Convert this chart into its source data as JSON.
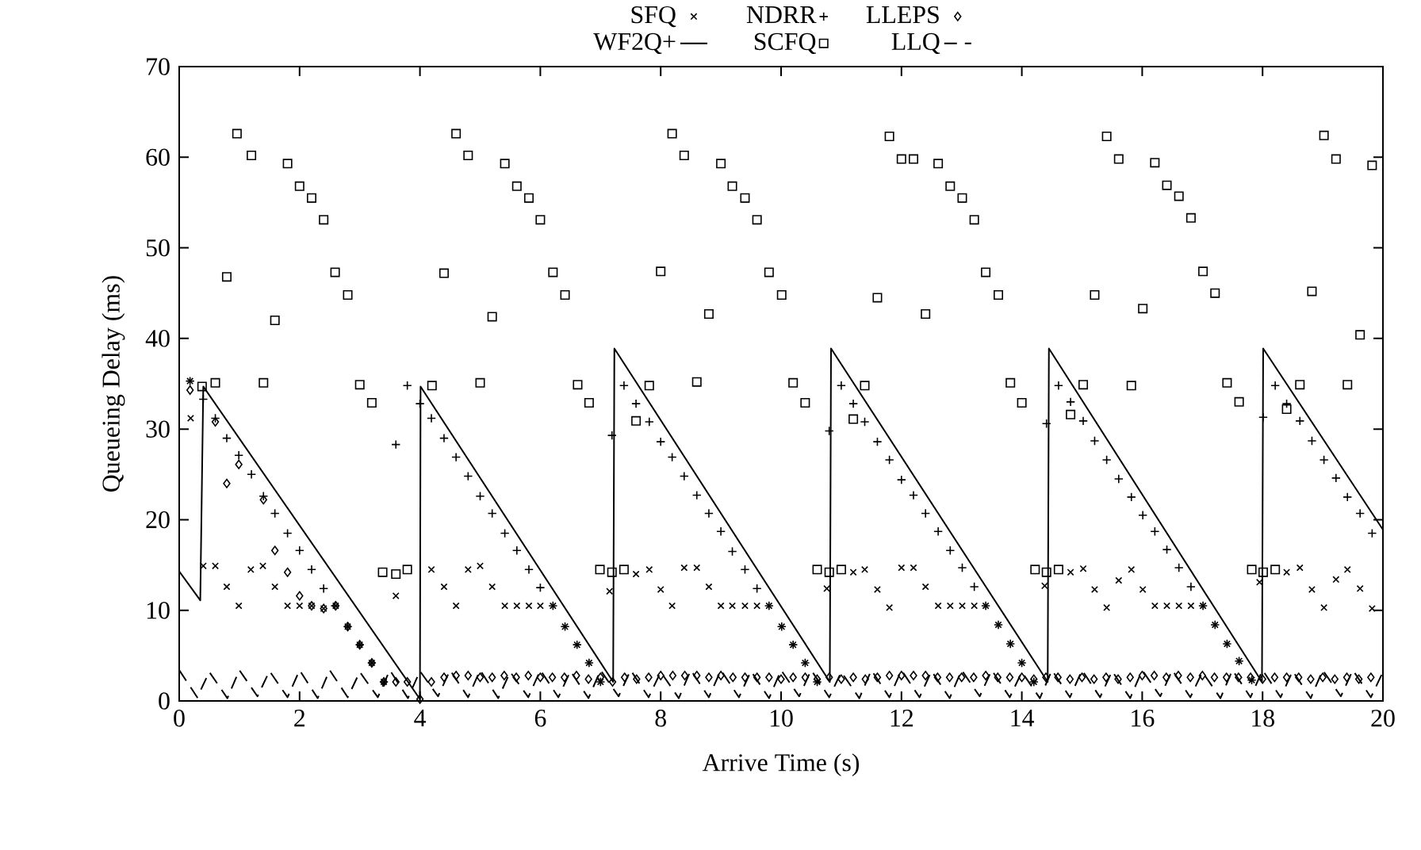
{
  "chart_data": {
    "type": "scatter",
    "xlabel": "Arrive Time (s)",
    "ylabel": "Queueing Delay (ms)",
    "xlim": [
      0,
      20
    ],
    "ylim": [
      0,
      70
    ],
    "xticks": [
      0,
      2,
      4,
      6,
      8,
      10,
      12,
      14,
      16,
      18,
      20
    ],
    "yticks": [
      0,
      10,
      20,
      30,
      40,
      50,
      60,
      70
    ],
    "grid": false,
    "legend": "top",
    "series": [
      {
        "name": "SFQ",
        "type": "scatter",
        "marker": "cross",
        "color": "#000000",
        "x": [
          0.18,
          0.19,
          0.4,
          0.6,
          0.79,
          0.99,
          1.19,
          1.39,
          1.59,
          1.8,
          2.0,
          2.2,
          2.4,
          2.6,
          2.8,
          3.0,
          3.2,
          3.4,
          3.6,
          4.19,
          4.4,
          4.6,
          4.8,
          5.0,
          5.2,
          5.41,
          5.61,
          5.81,
          6.0,
          6.21,
          6.41,
          6.61,
          6.81,
          7.0,
          7.15,
          7.59,
          7.81,
          8.0,
          8.19,
          8.39,
          8.6,
          8.8,
          9.0,
          9.19,
          9.4,
          9.6,
          9.8,
          10.01,
          10.2,
          10.4,
          10.6,
          10.76,
          11.2,
          11.39,
          11.6,
          11.8,
          12.0,
          12.2,
          12.4,
          12.61,
          12.81,
          13.01,
          13.21,
          13.4,
          13.61,
          13.81,
          14.0,
          14.2,
          14.38,
          14.81,
          15.02,
          15.21,
          15.41,
          15.61,
          15.82,
          16.01,
          16.21,
          16.41,
          16.61,
          16.81,
          17.01,
          17.21,
          17.41,
          17.61,
          17.82,
          17.95,
          18.4,
          18.62,
          18.82,
          19.02,
          19.22,
          19.41,
          19.62,
          19.82
        ],
        "values": [
          35.3,
          31.2,
          14.9,
          14.9,
          12.6,
          10.5,
          14.5,
          14.9,
          12.6,
          10.5,
          10.5,
          10.5,
          10.2,
          10.5,
          8.2,
          6.2,
          4.2,
          2.1,
          11.6,
          14.5,
          12.6,
          10.5,
          14.5,
          14.9,
          12.6,
          10.5,
          10.5,
          10.5,
          10.5,
          10.5,
          8.2,
          6.2,
          4.2,
          2.1,
          12.1,
          14.0,
          14.5,
          12.3,
          10.5,
          14.7,
          14.7,
          12.6,
          10.5,
          10.5,
          10.5,
          10.5,
          10.5,
          8.2,
          6.2,
          4.2,
          2.1,
          12.4,
          14.2,
          14.5,
          12.3,
          10.3,
          14.7,
          14.7,
          12.6,
          10.5,
          10.5,
          10.5,
          10.5,
          10.5,
          8.4,
          6.3,
          4.2,
          2.1,
          12.7,
          14.2,
          14.6,
          12.3,
          10.3,
          13.3,
          14.5,
          12.3,
          10.5,
          10.5,
          10.5,
          10.5,
          10.5,
          8.4,
          6.3,
          4.4,
          2.3,
          13.1,
          14.2,
          14.7,
          12.3,
          10.3,
          13.4,
          14.5,
          12.4,
          10.2
        ]
      },
      {
        "name": "NDRR",
        "type": "scatter",
        "marker": "plus",
        "color": "#000000",
        "x": [
          0.18,
          0.4,
          0.6,
          0.79,
          0.99,
          1.2,
          1.4,
          1.59,
          1.8,
          2.0,
          2.2,
          2.4,
          2.59,
          2.8,
          3.0,
          3.2,
          3.4,
          3.6,
          3.79,
          4.0,
          4.19,
          4.4,
          4.6,
          4.8,
          5.0,
          5.2,
          5.41,
          5.61,
          5.81,
          6.0,
          6.21,
          6.41,
          6.61,
          6.81,
          7.0,
          7.19,
          7.39,
          7.59,
          7.81,
          8.0,
          8.19,
          8.39,
          8.6,
          8.8,
          9.0,
          9.19,
          9.4,
          9.6,
          9.8,
          10.01,
          10.2,
          10.4,
          10.6,
          10.8,
          11.0,
          11.2,
          11.39,
          11.6,
          11.8,
          12.0,
          12.2,
          12.4,
          12.61,
          12.81,
          13.01,
          13.21,
          13.4,
          13.61,
          13.81,
          14.0,
          14.2,
          14.41,
          14.61,
          14.81,
          15.02,
          15.21,
          15.41,
          15.61,
          15.82,
          16.01,
          16.21,
          16.41,
          16.61,
          16.81,
          17.01,
          17.21,
          17.41,
          17.61,
          17.82,
          18.01,
          18.21,
          18.4,
          18.62,
          18.82,
          19.02,
          19.22,
          19.41,
          19.62,
          19.82
        ],
        "values": [
          35.3,
          33.3,
          31.2,
          29.0,
          27.1,
          25.0,
          22.6,
          20.7,
          18.5,
          16.6,
          14.5,
          12.4,
          10.5,
          8.2,
          6.2,
          4.2,
          2.1,
          28.3,
          34.8,
          32.8,
          31.2,
          29.0,
          26.9,
          24.8,
          22.6,
          20.7,
          18.5,
          16.6,
          14.5,
          12.5,
          10.5,
          8.2,
          6.2,
          4.2,
          2.1,
          29.3,
          34.8,
          32.8,
          30.8,
          28.6,
          26.9,
          24.8,
          22.7,
          20.7,
          18.7,
          16.5,
          14.5,
          12.4,
          10.5,
          8.2,
          6.2,
          4.2,
          2.1,
          29.8,
          34.8,
          32.8,
          30.8,
          28.6,
          26.6,
          24.4,
          22.7,
          20.7,
          18.7,
          16.6,
          14.7,
          12.6,
          10.5,
          8.4,
          6.3,
          4.2,
          2.1,
          30.6,
          34.8,
          33.0,
          30.9,
          28.7,
          26.6,
          24.5,
          22.5,
          20.5,
          18.7,
          16.7,
          14.7,
          12.6,
          10.5,
          8.4,
          6.3,
          4.4,
          2.3,
          31.3,
          34.8,
          32.8,
          30.9,
          28.7,
          26.6,
          24.6,
          22.5,
          20.7,
          18.5
        ]
      },
      {
        "name": "LLEPS",
        "type": "scatter",
        "marker": "diamond",
        "color": "#000000",
        "x": [
          0.18,
          0.6,
          0.79,
          0.99,
          1.4,
          1.59,
          1.8,
          2.0,
          2.2,
          2.4,
          2.6,
          2.8,
          3.0,
          3.2,
          3.4,
          3.6,
          3.79,
          4.0,
          4.19,
          4.4,
          4.6,
          4.8,
          5.0,
          5.2,
          5.4,
          5.6,
          5.8,
          6.0,
          6.2,
          6.4,
          6.6,
          6.8,
          7.0,
          7.2,
          7.4,
          7.6,
          7.8,
          8.0,
          8.2,
          8.4,
          8.6,
          8.8,
          9.0,
          9.2,
          9.4,
          9.6,
          9.8,
          10.0,
          10.2,
          10.4,
          10.6,
          10.8,
          11.0,
          11.2,
          11.4,
          11.6,
          11.8,
          12.0,
          12.2,
          12.4,
          12.6,
          12.8,
          13.0,
          13.2,
          13.4,
          13.6,
          13.8,
          14.0,
          14.2,
          14.4,
          14.6,
          14.8,
          15.0,
          15.2,
          15.4,
          15.6,
          15.8,
          16.0,
          16.2,
          16.4,
          16.6,
          16.8,
          17.0,
          17.2,
          17.4,
          17.6,
          17.8,
          18.0,
          18.2,
          18.4,
          18.6,
          18.8,
          19.0,
          19.2,
          19.4,
          19.6,
          19.8
        ],
        "values": [
          34.3,
          30.8,
          24.0,
          26.1,
          22.2,
          16.6,
          14.2,
          11.6,
          10.5,
          10.2,
          10.5,
          8.2,
          6.2,
          4.2,
          2.1,
          2.1,
          2.1,
          0.2,
          2.1,
          2.6,
          2.8,
          2.8,
          2.6,
          2.6,
          2.8,
          2.6,
          2.8,
          2.6,
          2.6,
          2.6,
          2.8,
          2.4,
          2.6,
          2.1,
          2.6,
          2.4,
          2.6,
          2.8,
          2.8,
          2.8,
          2.8,
          2.6,
          2.8,
          2.6,
          2.6,
          2.6,
          2.6,
          2.4,
          2.6,
          2.6,
          2.4,
          2.6,
          2.4,
          2.6,
          2.4,
          2.6,
          2.8,
          2.8,
          2.8,
          2.8,
          2.6,
          2.6,
          2.6,
          2.6,
          2.8,
          2.6,
          2.6,
          2.6,
          2.4,
          2.6,
          2.6,
          2.4,
          2.6,
          2.4,
          2.6,
          2.4,
          2.6,
          2.8,
          2.8,
          2.6,
          2.8,
          2.6,
          2.8,
          2.6,
          2.6,
          2.6,
          2.6,
          2.4,
          2.6,
          2.6,
          2.6,
          2.4,
          2.6,
          2.4,
          2.6,
          2.4,
          2.6
        ]
      },
      {
        "name": "WF2Q+",
        "type": "line",
        "line_style": "solid",
        "color": "#000000",
        "x": [
          0,
          0.35,
          0.4,
          4.0,
          4.01,
          7.21,
          7.23,
          10.81,
          10.83,
          14.43,
          14.45,
          17.99,
          18.01,
          20
        ],
        "values": [
          14.3,
          11.1,
          34.7,
          0.2,
          34.7,
          2.1,
          38.9,
          2.1,
          38.9,
          2.1,
          38.9,
          2.1,
          38.9,
          18.9
        ]
      },
      {
        "name": "SCFQ",
        "type": "scatter",
        "marker": "square",
        "color": "#000000",
        "x": [
          0.38,
          0.6,
          0.79,
          0.96,
          1.2,
          1.4,
          1.59,
          1.8,
          2.0,
          2.2,
          2.4,
          2.59,
          2.8,
          3.0,
          3.2,
          3.38,
          3.6,
          3.79,
          4.2,
          4.4,
          4.6,
          4.8,
          5.0,
          5.2,
          5.41,
          5.61,
          5.81,
          6.0,
          6.21,
          6.41,
          6.62,
          6.81,
          6.99,
          7.19,
          7.39,
          7.59,
          7.81,
          8.0,
          8.19,
          8.39,
          8.6,
          8.8,
          9.0,
          9.19,
          9.4,
          9.6,
          9.8,
          10.01,
          10.2,
          10.4,
          10.6,
          10.8,
          11.0,
          11.2,
          11.39,
          11.6,
          11.8,
          12.0,
          12.2,
          12.4,
          12.61,
          12.81,
          13.01,
          13.21,
          13.4,
          13.61,
          13.81,
          14.0,
          14.22,
          14.41,
          14.61,
          14.81,
          15.02,
          15.21,
          15.41,
          15.61,
          15.82,
          16.01,
          16.21,
          16.41,
          16.61,
          16.81,
          17.01,
          17.21,
          17.41,
          17.61,
          17.82,
          18.01,
          18.21,
          18.4,
          18.62,
          18.82,
          19.02,
          19.22,
          19.41,
          19.62,
          19.82
        ],
        "values": [
          34.7,
          35.1,
          46.8,
          62.6,
          60.2,
          35.1,
          42.0,
          59.3,
          56.8,
          55.5,
          53.1,
          47.3,
          44.8,
          34.9,
          32.9,
          14.2,
          14.0,
          14.5,
          34.8,
          47.2,
          62.6,
          60.2,
          35.1,
          42.4,
          59.3,
          56.8,
          55.5,
          53.1,
          47.3,
          44.8,
          34.9,
          32.9,
          14.5,
          14.2,
          14.5,
          30.9,
          34.8,
          47.4,
          62.6,
          60.2,
          35.2,
          42.7,
          59.3,
          56.8,
          55.5,
          53.1,
          47.3,
          44.8,
          35.1,
          32.9,
          14.5,
          14.2,
          14.5,
          31.1,
          34.8,
          44.5,
          62.3,
          59.8,
          59.8,
          42.7,
          59.3,
          56.8,
          55.5,
          53.1,
          47.3,
          44.8,
          35.1,
          32.9,
          14.5,
          14.2,
          14.5,
          31.6,
          34.9,
          44.8,
          62.3,
          59.8,
          34.8,
          43.3,
          59.4,
          56.9,
          55.7,
          53.3,
          47.4,
          45.0,
          35.1,
          33.0,
          14.5,
          14.2,
          14.5,
          32.2,
          34.9,
          45.2,
          62.4,
          59.8,
          34.9,
          40.4,
          59.1
        ]
      },
      {
        "name": "LLQ",
        "type": "line",
        "line_style": "dashed",
        "color": "#000000",
        "x": [
          0,
          0.3,
          0.5,
          0.8,
          1.0,
          1.3,
          1.5,
          1.8,
          2.0,
          2.3,
          2.5,
          2.8,
          3.0,
          3.3,
          3.5,
          3.8,
          4.0,
          4.3,
          4.5,
          4.8,
          5.0,
          5.3,
          5.5,
          5.8,
          6.0,
          6.3,
          6.5,
          6.8,
          7.0,
          7.3,
          7.5,
          7.8,
          8.0,
          8.3,
          8.5,
          8.8,
          9.0,
          9.3,
          9.5,
          9.8,
          10.0,
          10.3,
          10.5,
          10.8,
          11.0,
          11.3,
          11.5,
          11.8,
          12.0,
          12.3,
          12.5,
          12.8,
          13.0,
          13.3,
          13.5,
          13.8,
          14.0,
          14.3,
          14.5,
          14.8,
          15.0,
          15.3,
          15.5,
          15.8,
          16.0,
          16.3,
          16.5,
          16.8,
          17.0,
          17.3,
          17.5,
          17.8,
          18.0,
          18.3,
          18.5,
          18.8,
          19.0,
          19.3,
          19.5,
          19.8,
          20
        ],
        "values": [
          3.4,
          0.4,
          3.2,
          0.3,
          3.4,
          0.5,
          3.3,
          0.4,
          3.4,
          0.3,
          3.4,
          0.4,
          3.2,
          0.4,
          3.4,
          0.3,
          3.3,
          0.5,
          3.4,
          0.4,
          3.4,
          0.3,
          3.2,
          0.4,
          3.4,
          0.4,
          3.3,
          0.3,
          3.4,
          0.5,
          3.4,
          0.4,
          3.2,
          0.3,
          3.4,
          0.4,
          3.4,
          0.4,
          3.3,
          0.3,
          3.4,
          0.5,
          3.4,
          0.4,
          3.2,
          0.3,
          3.4,
          0.4,
          3.4,
          0.4,
          3.3,
          0.3,
          3.4,
          0.5,
          3.4,
          0.4,
          3.2,
          0.3,
          3.4,
          0.4,
          3.4,
          0.4,
          3.3,
          0.3,
          3.4,
          0.5,
          3.4,
          0.4,
          3.2,
          0.3,
          3.4,
          0.4,
          3.4,
          0.4,
          3.3,
          0.3,
          3.4,
          0.5,
          3.4,
          0.4,
          3.2
        ]
      }
    ]
  }
}
